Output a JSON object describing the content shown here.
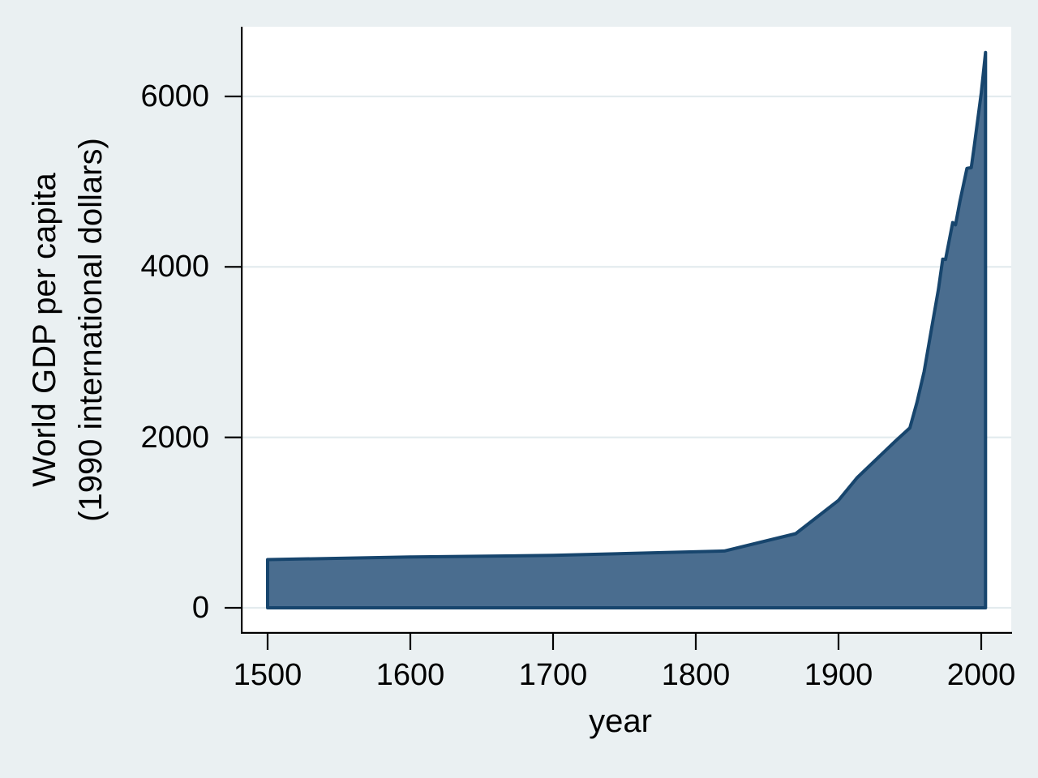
{
  "chart_data": {
    "type": "area",
    "title": "",
    "xlabel": "year",
    "ylabel_lines": [
      "World GDP per capita",
      "(1990 international dollars)"
    ],
    "x_ticks": [
      "1500",
      "1600",
      "1700",
      "1800",
      "1900",
      "2000"
    ],
    "x_tick_values": [
      1500,
      1600,
      1700,
      1800,
      1900,
      2000
    ],
    "y_ticks": [
      "0",
      "2000",
      "4000",
      "6000"
    ],
    "y_tick_values": [
      0,
      2000,
      4000,
      6000
    ],
    "xlim": [
      1500,
      2003
    ],
    "ylim": [
      0,
      6516
    ],
    "grid": true,
    "legend": "none",
    "series": [
      {
        "name": "World GDP per capita (1990 international dollars)",
        "x": [
          1500,
          1600,
          1700,
          1820,
          1870,
          1900,
          1913,
          1940,
          1950,
          1955,
          1960,
          1965,
          1970,
          1973,
          1975,
          1980,
          1982,
          1985,
          1990,
          1993,
          1995,
          2000,
          2003
        ],
        "y": [
          566,
          596,
          615,
          667,
          870,
          1261,
          1526,
          1958,
          2111,
          2412,
          2773,
          3259,
          3736,
          4091,
          4088,
          4520,
          4494,
          4764,
          5157,
          5164,
          5404,
          6038,
          6516
        ]
      }
    ],
    "colors": {
      "background": "#eaf0f2",
      "plot_background": "#ffffff",
      "gridline": "#e3ebee",
      "area_fill": "#4a6d8f",
      "area_stroke": "#17456d",
      "axis": "#000000",
      "text": "#000000"
    }
  }
}
